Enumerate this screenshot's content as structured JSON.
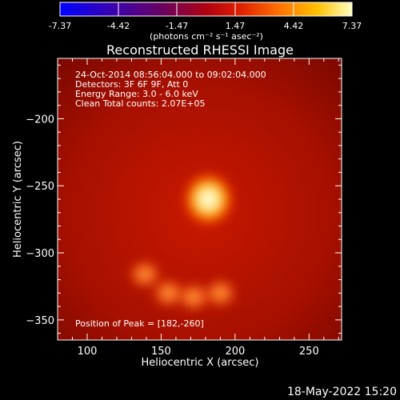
{
  "chart_data": {
    "type": "heatmap",
    "title": "Reconstructed RHESSI Image",
    "colorbar": {
      "ticks": [
        "-7.37",
        "-4.42",
        "-1.47",
        "1.47",
        "4.42",
        "7.37"
      ],
      "range": [
        -7.37,
        7.37
      ],
      "units_label": "(photons cm⁻² s⁻¹ asec⁻²)",
      "colormap": "blue-purple-red-yellow-white"
    },
    "xlabel": "Heliocentric X (arcsec)",
    "ylabel": "Heliocentric Y (arcsec)",
    "xlim": [
      80,
      272
    ],
    "ylim": [
      -365,
      -155
    ],
    "xticks": [
      100,
      150,
      200,
      250
    ],
    "yticks": [
      -200,
      -250,
      -300,
      -350
    ],
    "annotations": [
      "24-Oct-2014 08:56:04.000 to 09:02:04.000",
      "Detectors: 3F 6F 9F, Att 0",
      "Energy Range: 3.0 - 6.0 keV",
      "Clean    Total counts: 2.07E+05"
    ],
    "peak_label": "Position of Peak = [182,-260]",
    "sources": [
      {
        "x": 182,
        "y": -260,
        "intensity": 7.37
      },
      {
        "x": 139,
        "y": -316,
        "intensity": 3.8
      },
      {
        "x": 155,
        "y": -330,
        "intensity": 4.0
      },
      {
        "x": 172,
        "y": -333,
        "intensity": 3.9
      },
      {
        "x": 190,
        "y": -330,
        "intensity": 3.6
      }
    ]
  },
  "footer": {
    "timestamp": "18-May-2022 15:20"
  },
  "colors": {
    "background": "#000000",
    "frame": "#ffffff"
  }
}
